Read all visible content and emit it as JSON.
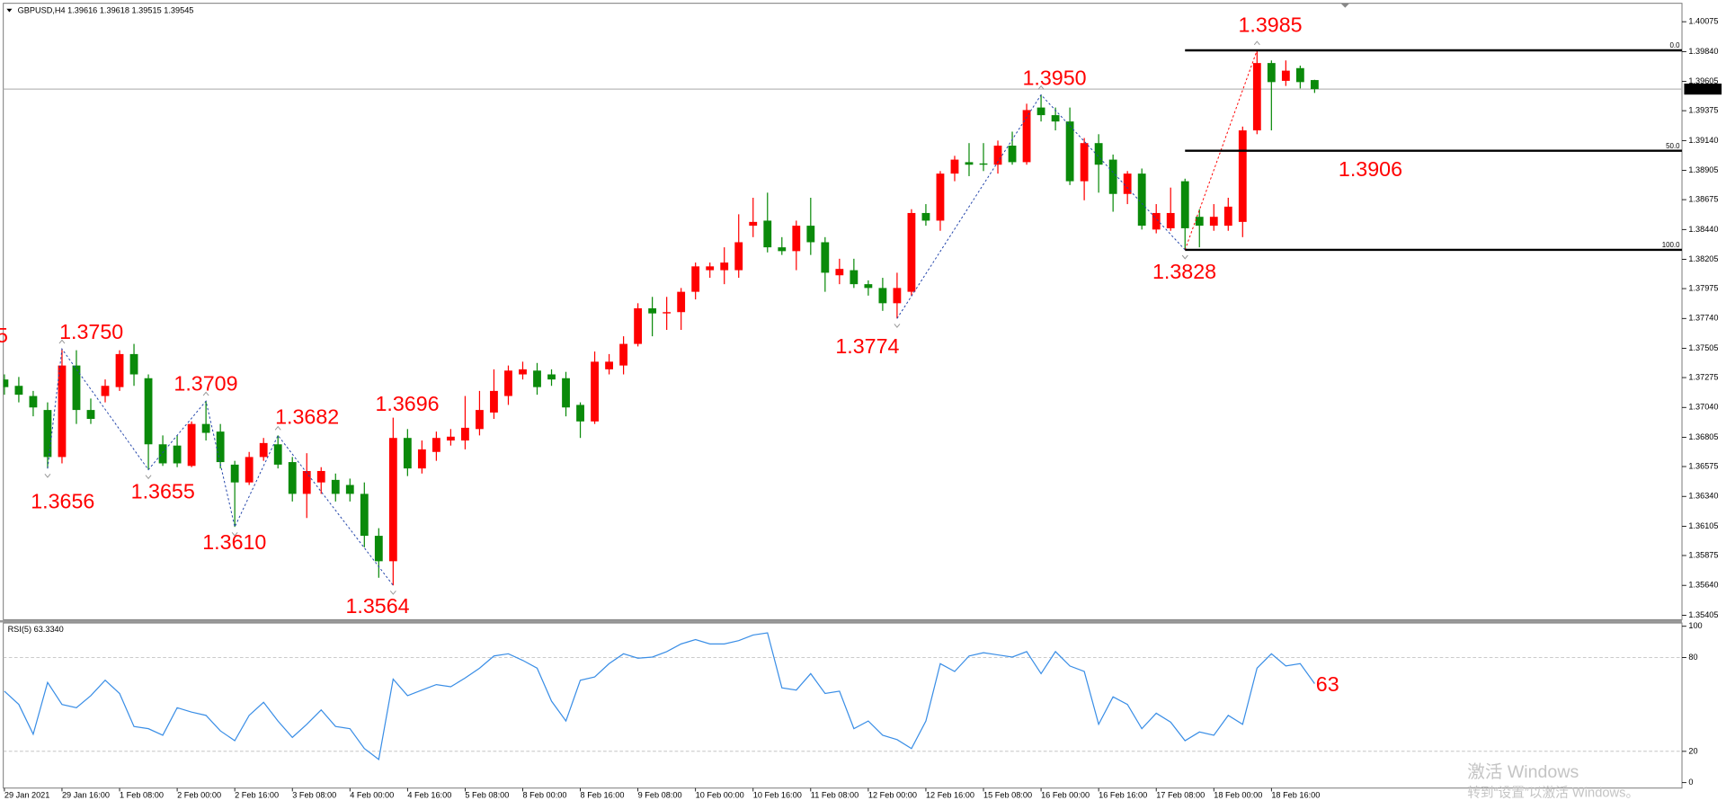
{
  "chart_data": [
    {
      "type": "candlestick",
      "title": "GBPUSD,H4  1.39616 1.39618 1.39515 1.39545",
      "categories": [
        "29 Jan 2021",
        null,
        null,
        null,
        "29 Jan 16:00",
        null,
        null,
        null,
        "1 Feb 08:00",
        null,
        null,
        null,
        "2 Feb 00:00",
        null,
        null,
        null,
        "2 Feb 16:00",
        null,
        null,
        null,
        "3 Feb 08:00",
        null,
        null,
        null,
        "4 Feb 00:00",
        null,
        null,
        null,
        "4 Feb 16:00",
        null,
        null,
        null,
        "5 Feb 08:00",
        null,
        null,
        null,
        "8 Feb 00:00",
        null,
        null,
        null,
        "8 Feb 16:00",
        null,
        null,
        null,
        "9 Feb 08:00",
        null,
        null,
        null,
        "10 Feb 00:00",
        null,
        null,
        null,
        "10 Feb 16:00",
        null,
        null,
        null,
        "11 Feb 08:00",
        null,
        null,
        null,
        "12 Feb 00:00",
        null,
        null,
        null,
        "12 Feb 16:00",
        null,
        null,
        null,
        "15 Feb 08:00",
        null,
        null,
        null,
        "16 Feb 00:00",
        null,
        null,
        null,
        "16 Feb 16:00",
        null,
        null,
        null,
        "17 Feb 08:00",
        null,
        null,
        null,
        "18 Feb 00:00",
        null,
        null,
        null,
        "18 Feb 16:00",
        null,
        null,
        null
      ],
      "open": [
        1.3726,
        1.3721,
        1.3713,
        1.3702,
        1.3665,
        1.3737,
        1.3702,
        1.3713,
        1.372,
        1.3746,
        1.3727,
        1.3675,
        1.3674,
        1.3658,
        1.3691,
        1.3685,
        1.3659,
        1.3645,
        1.3665,
        1.3675,
        1.3661,
        1.3636,
        1.3645,
        1.3647,
        1.3643,
        1.3636,
        1.3603,
        1.3583,
        1.368,
        1.3656,
        1.3669,
        1.3678,
        1.3678,
        1.3687,
        1.37,
        1.3713,
        1.373,
        1.3733,
        1.373,
        1.3727,
        1.3706,
        1.3693,
        1.3734,
        1.3737,
        1.3754,
        1.3782,
        1.3778,
        1.3779,
        1.3795,
        1.3812,
        1.3812,
        1.3812,
        1.3847,
        1.3851,
        1.383,
        1.3827,
        1.3847,
        1.3834,
        1.3808,
        1.3812,
        1.3801,
        1.3798,
        1.3786,
        1.3795,
        1.3857,
        1.3851,
        1.3888,
        1.3897,
        1.3896,
        1.3895,
        1.391,
        1.3897,
        1.394,
        1.3934,
        1.3929,
        1.3882,
        1.3912,
        1.3899,
        1.3872,
        1.3888,
        1.3844,
        1.3845,
        1.3882,
        1.3854,
        1.3847,
        1.3847,
        1.385,
        1.3922,
        1.3975,
        1.3961,
        1.3971,
        1.39616
      ],
      "high": [
        1.373,
        1.3728,
        1.3717,
        1.3708,
        1.375,
        1.3749,
        1.3711,
        1.3726,
        1.3749,
        1.3754,
        1.373,
        1.3682,
        1.3682,
        1.3693,
        1.3709,
        1.3691,
        1.3662,
        1.3669,
        1.368,
        1.3682,
        1.3665,
        1.3668,
        1.3657,
        1.3652,
        1.3648,
        1.3645,
        1.3609,
        1.3696,
        1.3687,
        1.3678,
        1.3685,
        1.3687,
        1.3713,
        1.3717,
        1.3734,
        1.3737,
        1.374,
        1.3739,
        1.3734,
        1.3732,
        1.3708,
        1.3748,
        1.3746,
        1.376,
        1.3786,
        1.3791,
        1.3791,
        1.3798,
        1.3818,
        1.3818,
        1.383,
        1.3856,
        1.3869,
        1.3873,
        1.3838,
        1.3851,
        1.3869,
        1.3838,
        1.3821,
        1.3821,
        1.3804,
        1.3806,
        1.381,
        1.386,
        1.3864,
        1.389,
        1.3902,
        1.3912,
        1.3912,
        1.3914,
        1.3921,
        1.3943,
        1.395,
        1.394,
        1.394,
        1.3916,
        1.3919,
        1.3903,
        1.389,
        1.3892,
        1.3864,
        1.3877,
        1.3884,
        1.386,
        1.3864,
        1.3869,
        1.3925,
        1.3985,
        1.3977,
        1.3977,
        1.3973,
        1.39618
      ],
      "low": [
        1.3714,
        1.3708,
        1.3697,
        1.3656,
        1.366,
        1.3691,
        1.3691,
        1.3708,
        1.3717,
        1.3721,
        1.3655,
        1.3658,
        1.3657,
        1.3657,
        1.3678,
        1.3656,
        1.361,
        1.3643,
        1.3662,
        1.3656,
        1.363,
        1.3617,
        1.3636,
        1.363,
        1.363,
        1.3594,
        1.357,
        1.3564,
        1.365,
        1.3652,
        1.3662,
        1.3674,
        1.3671,
        1.3682,
        1.3695,
        1.3706,
        1.3726,
        1.3714,
        1.3721,
        1.3697,
        1.368,
        1.3691,
        1.373,
        1.373,
        1.3752,
        1.376,
        1.3765,
        1.3765,
        1.3789,
        1.3806,
        1.3801,
        1.3806,
        1.3838,
        1.3826,
        1.3824,
        1.3812,
        1.3824,
        1.3795,
        1.3801,
        1.3798,
        1.3792,
        1.378,
        1.3774,
        1.3792,
        1.3847,
        1.3843,
        1.3882,
        1.3886,
        1.389,
        1.3888,
        1.3895,
        1.3895,
        1.3929,
        1.3922,
        1.3879,
        1.3867,
        1.3873,
        1.3858,
        1.3864,
        1.3844,
        1.3841,
        1.3843,
        1.3828,
        1.383,
        1.3843,
        1.3843,
        1.3838,
        1.3919,
        1.3922,
        1.3957,
        1.3955,
        1.39515
      ],
      "close": [
        1.372,
        1.3714,
        1.3704,
        1.3665,
        1.3737,
        1.3702,
        1.3695,
        1.3721,
        1.3746,
        1.373,
        1.3675,
        1.366,
        1.366,
        1.3691,
        1.3684,
        1.3661,
        1.3645,
        1.3665,
        1.3676,
        1.3659,
        1.3636,
        1.3654,
        1.3654,
        1.3636,
        1.3636,
        1.3603,
        1.3583,
        1.368,
        1.3656,
        1.3671,
        1.368,
        1.3681,
        1.3688,
        1.3702,
        1.3717,
        1.3733,
        1.3734,
        1.372,
        1.3726,
        1.3704,
        1.3693,
        1.374,
        1.374,
        1.3754,
        1.3782,
        1.3778,
        1.3779,
        1.3795,
        1.3815,
        1.3815,
        1.3818,
        1.3834,
        1.385,
        1.383,
        1.3827,
        1.3847,
        1.3834,
        1.381,
        1.3813,
        1.3801,
        1.3798,
        1.3786,
        1.3798,
        1.3857,
        1.3851,
        1.3888,
        1.3899,
        1.3895,
        1.3895,
        1.391,
        1.3897,
        1.3938,
        1.3934,
        1.3929,
        1.3882,
        1.3912,
        1.3895,
        1.3872,
        1.3888,
        1.3847,
        1.3857,
        1.3857,
        1.3845,
        1.3847,
        1.3854,
        1.3862,
        1.3922,
        1.3975,
        1.396,
        1.3969,
        1.396,
        1.39545
      ],
      "up_color": "#ff0000",
      "down_color": "#0a8a0a",
      "ylim": [
        1.3537,
        1.4022
      ],
      "yticks": [
        1.40075,
        {
          "value": 1.3984,
          "label": "1.39840"
        },
        1.39605,
        1.39375,
        {
          "value": 1.3914,
          "label": "1.39140"
        },
        1.38905,
        1.38675,
        {
          "value": 1.3844,
          "label": "1.38440"
        },
        1.38205,
        1.37975,
        {
          "value": 1.3774,
          "label": "1.37740"
        },
        1.37505,
        1.37275,
        {
          "value": 1.3704,
          "label": "1.37040"
        },
        1.36805,
        1.36575,
        {
          "value": 1.3634,
          "label": "1.36340"
        },
        1.36105,
        1.35875,
        {
          "value": 1.3564,
          "label": "1.35640"
        },
        1.35405
      ],
      "current_price": 1.39545,
      "fib_levels": [
        {
          "value": 1.3985,
          "label": "0.0"
        },
        {
          "value": 1.3906,
          "label": "50.0"
        },
        {
          "value": 1.3828,
          "label": "100.0"
        }
      ],
      "annotations": [
        "5",
        "1.3750",
        "1.3656",
        "1.3655",
        "1.3709",
        "1.3610",
        "1.3682",
        "1.3696",
        "1.3564",
        "1.3774",
        "1.3950",
        "1.3828",
        "1.3985",
        "1.3906"
      ]
    },
    {
      "type": "line",
      "title": "RSI(5) 63.3340",
      "color": "#3a8ee6",
      "values": [
        58.5,
        50.0,
        31.0,
        64.1,
        50.0,
        47.9,
        55.6,
        65.5,
        57.0,
        35.9,
        34.5,
        30.3,
        47.9,
        45.1,
        43.0,
        33.1,
        26.8,
        43.0,
        51.4,
        39.4,
        28.9,
        37.3,
        46.5,
        35.9,
        34.5,
        21.8,
        14.8,
        66.2,
        55.6,
        59.2,
        62.7,
        61.3,
        66.9,
        73.2,
        81.0,
        82.4,
        78.2,
        73.2,
        52.1,
        39.4,
        65.5,
        67.6,
        76.1,
        82.4,
        79.6,
        80.3,
        83.8,
        88.7,
        91.5,
        88.7,
        88.7,
        90.8,
        94.4,
        95.8,
        60.6,
        59.2,
        69.7,
        57.0,
        58.5,
        34.5,
        39.4,
        30.3,
        27.5,
        21.8,
        39.4,
        76.1,
        71.1,
        81.0,
        83.1,
        81.7,
        80.3,
        83.8,
        69.7,
        83.8,
        74.6,
        71.1,
        37.3,
        54.9,
        50.0,
        34.5,
        44.4,
        38.7,
        26.8,
        32.4,
        30.3,
        43.0,
        37.3,
        73.2,
        82.4,
        74.6,
        76.1,
        63.334
      ],
      "ylim": [
        -3.5,
        102.1
      ],
      "yticks": [
        0,
        20,
        80,
        100
      ],
      "levels": [
        20,
        80
      ],
      "annotations": [
        "63"
      ]
    }
  ],
  "watermark": {
    "title": "激活 Windows",
    "subtitle": "转到“设置”以激活 Windows。"
  }
}
